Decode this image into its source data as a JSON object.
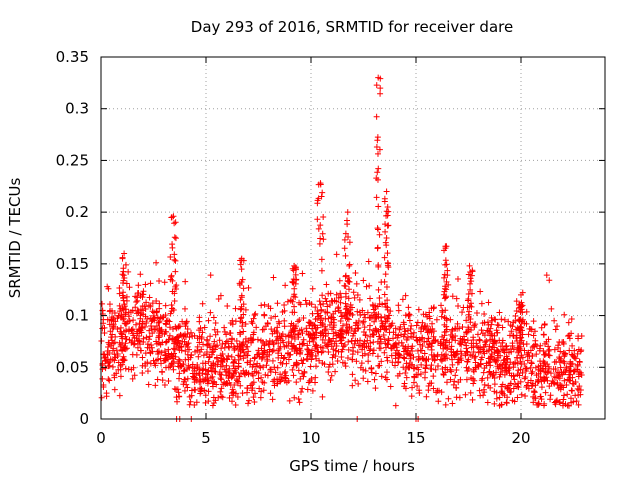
{
  "chart_data": {
    "type": "scatter",
    "title": "Day 293 of 2016, SRMTID for receiver dare",
    "xlabel": "GPS time / hours",
    "ylabel": "SRMTID / TECUs",
    "xlim": [
      0,
      24
    ],
    "ylim": [
      0,
      0.35
    ],
    "xticks": [
      0,
      5,
      10,
      15,
      20
    ],
    "xtick_labels": [
      "0",
      "5",
      "10",
      "15",
      "20"
    ],
    "yticks": [
      0,
      0.05,
      0.1,
      0.15,
      0.2,
      0.25,
      0.3,
      0.35
    ],
    "ytick_labels": [
      "0",
      "0.05",
      "0.1",
      "0.15",
      "0.2",
      "0.25",
      "0.3",
      "0.35"
    ],
    "grid": true,
    "marker": "plus",
    "series_color": "#ff0000",
    "x_data_end": 22.9,
    "baseline_segments": [
      [
        0.0,
        0.065
      ],
      [
        1.0,
        0.08
      ],
      [
        2.0,
        0.085
      ],
      [
        2.8,
        0.08
      ],
      [
        3.5,
        0.065
      ],
      [
        4.5,
        0.05
      ],
      [
        6.0,
        0.06
      ],
      [
        7.5,
        0.06
      ],
      [
        8.5,
        0.07
      ],
      [
        9.5,
        0.065
      ],
      [
        10.5,
        0.08
      ],
      [
        11.5,
        0.085
      ],
      [
        12.5,
        0.08
      ],
      [
        13.5,
        0.085
      ],
      [
        14.5,
        0.07
      ],
      [
        16.0,
        0.065
      ],
      [
        17.5,
        0.07
      ],
      [
        19.0,
        0.055
      ],
      [
        20.0,
        0.065
      ],
      [
        21.0,
        0.05
      ],
      [
        22.9,
        0.045
      ]
    ],
    "spikes": [
      {
        "x": [
          3.3,
          3.6
        ],
        "ymax": 0.196
      },
      {
        "x": [
          10.3,
          10.6
        ],
        "ymax": 0.228
      },
      {
        "x": [
          11.6,
          11.9
        ],
        "ymax": 0.2
      },
      {
        "x": [
          13.1,
          13.3
        ],
        "ymax": 0.33
      },
      {
        "x": [
          13.5,
          13.7
        ],
        "ymax": 0.22
      },
      {
        "x": [
          17.4,
          17.7
        ],
        "ymax": 0.148
      },
      {
        "x": [
          16.3,
          16.5
        ],
        "ymax": 0.167
      },
      {
        "x": [
          1.0,
          1.2
        ],
        "ymax": 0.16
      },
      {
        "x": [
          6.6,
          6.8
        ],
        "ymax": 0.155
      },
      {
        "x": [
          9.1,
          9.3
        ],
        "ymax": 0.148
      },
      {
        "x": [
          19.9,
          20.1
        ],
        "ymax": 0.12
      }
    ],
    "zero_points": [
      3.6,
      3.75,
      4.3,
      12.2,
      15.0,
      15.1
    ],
    "n_points": 2300
  }
}
